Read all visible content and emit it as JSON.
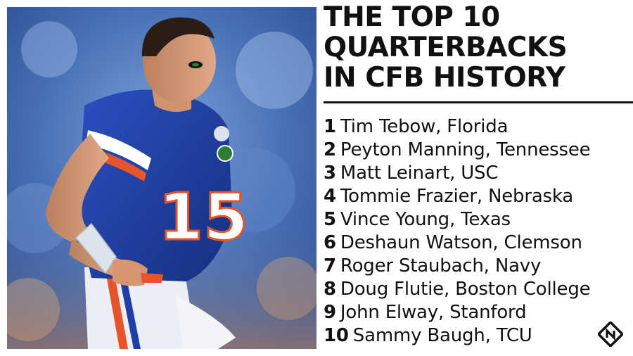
{
  "title_lines": [
    "THE TOP 10",
    "QUARTERBACKS",
    "IN CFB HISTORY"
  ],
  "rankings": [
    {
      "rank": "1",
      "entry": "Tim Tebow, Florida"
    },
    {
      "rank": "2",
      "entry": "Peyton Manning, Tennessee"
    },
    {
      "rank": "3",
      "entry": "Matt Leinart, USC"
    },
    {
      "rank": "4",
      "entry": "Tommie Frazier, Nebraska"
    },
    {
      "rank": "5",
      "entry": "Vince Young, Texas"
    },
    {
      "rank": "6",
      "entry": "Deshaun Watson, Clemson"
    },
    {
      "rank": "7",
      "entry": "Roger Staubach, Navy"
    },
    {
      "rank": "8",
      "entry": "Doug Flutie, Boston College"
    },
    {
      "rank": "9",
      "entry": "John Elway, Stanford"
    },
    {
      "rank": "10",
      "entry": "Sammy Baugh, TCU"
    }
  ],
  "photo": {
    "jersey_number": "15",
    "icons": [
      "player-photo",
      "sporting-news-logo-icon"
    ]
  },
  "colors": {
    "text": "#111111",
    "jersey_blue": "#1f3fa8",
    "accent_orange": "#e8542a"
  }
}
